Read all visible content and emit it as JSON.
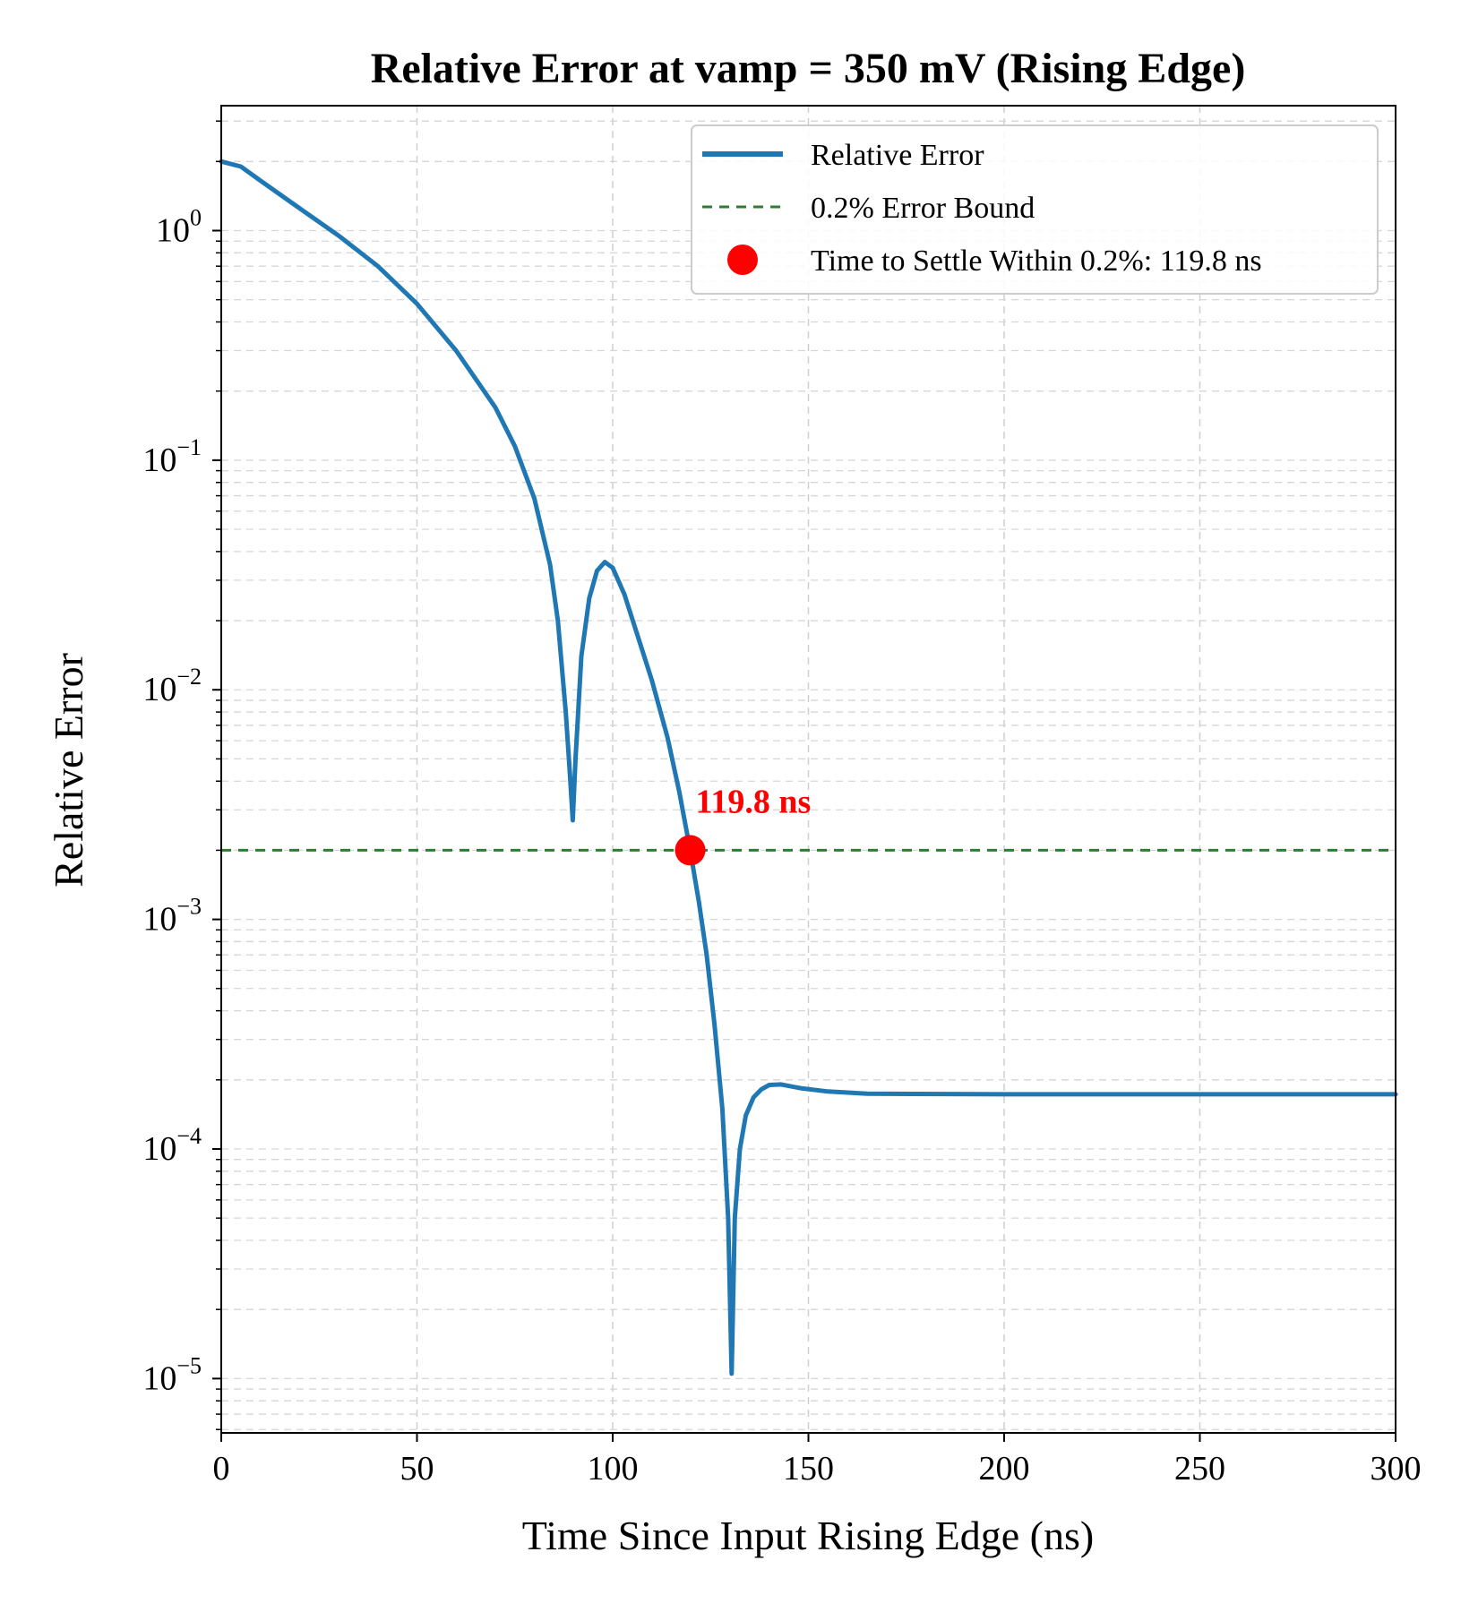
{
  "chart_data": {
    "type": "line",
    "title": "Relative Error at vamp = 350 mV (Rising Edge)",
    "xlabel": "Time Since Input Rising Edge (ns)",
    "ylabel": "Relative Error",
    "xlim": [
      0,
      300
    ],
    "ylim": [
      5.8e-06,
      3.5
    ],
    "yscale": "log",
    "grid": true,
    "legend_position": "top-right",
    "x_ticks": [
      "0",
      "50",
      "100",
      "150",
      "200",
      "250",
      "300"
    ],
    "y_ticks": [
      {
        "base": "10",
        "exp": "0",
        "value": 1
      },
      {
        "base": "10",
        "exp": "−1",
        "value": 0.1
      },
      {
        "base": "10",
        "exp": "−2",
        "value": 0.01
      },
      {
        "base": "10",
        "exp": "−3",
        "value": 0.001
      },
      {
        "base": "10",
        "exp": "−4",
        "value": 0.0001
      },
      {
        "base": "10",
        "exp": "−5",
        "value": 1e-05
      }
    ],
    "series": [
      {
        "name": "Relative Error",
        "color": "#1f77b4",
        "style": "solid",
        "points": [
          [
            0,
            2.0
          ],
          [
            5,
            1.9
          ],
          [
            10,
            1.65
          ],
          [
            20,
            1.25
          ],
          [
            30,
            0.95
          ],
          [
            40,
            0.7
          ],
          [
            50,
            0.48
          ],
          [
            60,
            0.3
          ],
          [
            70,
            0.17
          ],
          [
            75,
            0.115
          ],
          [
            80,
            0.068
          ],
          [
            84,
            0.035
          ],
          [
            86,
            0.02
          ],
          [
            88,
            0.008
          ],
          [
            89,
            0.0045
          ],
          [
            89.8,
            0.0027
          ],
          [
            90.5,
            0.005
          ],
          [
            92,
            0.014
          ],
          [
            94,
            0.025
          ],
          [
            96,
            0.033
          ],
          [
            98,
            0.036
          ],
          [
            100,
            0.034
          ],
          [
            103,
            0.026
          ],
          [
            106,
            0.018
          ],
          [
            110,
            0.011
          ],
          [
            114,
            0.0062
          ],
          [
            117,
            0.0036
          ],
          [
            119.8,
            0.002
          ],
          [
            122,
            0.0012
          ],
          [
            124,
            0.0007
          ],
          [
            126,
            0.00035
          ],
          [
            128,
            0.00015
          ],
          [
            129.5,
            5e-05
          ],
          [
            130.4,
            1.05e-05
          ],
          [
            131.2,
            5e-05
          ],
          [
            132.5,
            0.0001
          ],
          [
            134,
            0.00014
          ],
          [
            136,
            0.000168
          ],
          [
            138,
            0.000182
          ],
          [
            140,
            0.00019
          ],
          [
            143,
            0.000191
          ],
          [
            148,
            0.000184
          ],
          [
            155,
            0.000178
          ],
          [
            165,
            0.000174
          ],
          [
            200,
            0.000173
          ],
          [
            250,
            0.000173
          ],
          [
            300,
            0.000173
          ]
        ]
      },
      {
        "name": "0.2% Error Bound",
        "color": "#2e7d32",
        "style": "dashed",
        "value": 0.002
      },
      {
        "name": "Time to Settle Within 0.2%: 119.8 ns",
        "color": "#ff0000",
        "style": "marker",
        "x": 119.8,
        "y": 0.002
      }
    ],
    "annotation": {
      "text": "119.8 ns",
      "x": 119.8,
      "y": 0.002
    }
  }
}
